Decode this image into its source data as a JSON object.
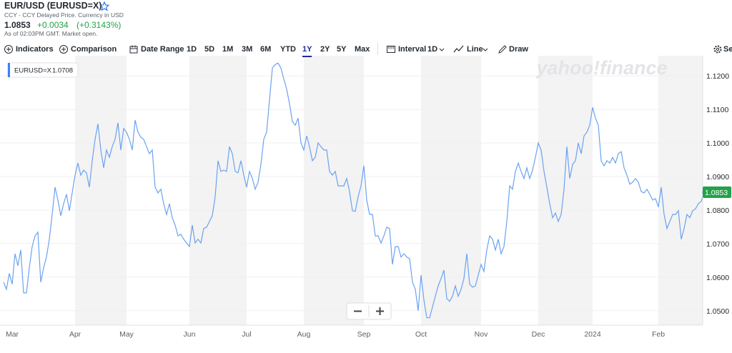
{
  "header": {
    "title": "EUR/USD (EURUSD=X)",
    "subtitle": "CCY - CCY Delayed Price. Currency in USD",
    "price": "1.0853",
    "change": "+0.0034",
    "change_percent": "(+0.3143%)",
    "timestamp": "As of 02:03PM GMT. Market open."
  },
  "toolbar": {
    "indicators": "Indicators",
    "comparison": "Comparison",
    "date_range": "Date Range",
    "ranges": [
      "1D",
      "5D",
      "1M",
      "3M",
      "6M",
      "YTD",
      "1Y",
      "2Y",
      "5Y",
      "Max"
    ],
    "active_range": "1Y",
    "interval": "Interval",
    "interval_value": "1D",
    "line": "Line",
    "draw": "Draw",
    "settings": "Se"
  },
  "watermark": "yahoo!finance",
  "chart_data": {
    "type": "line",
    "hover_label": "EURUSD=X",
    "hover_value": "1.0708",
    "series": [
      {
        "name": "EURUSD=X",
        "color": "#6ba2f1",
        "values": [
          1.0585,
          1.0564,
          1.0611,
          1.0579,
          1.067,
          1.0634,
          1.0681,
          1.0553,
          1.0553,
          1.0628,
          1.0691,
          1.0723,
          1.0734,
          1.0585,
          1.0628,
          1.066,
          1.0713,
          1.0787,
          1.0868,
          1.083,
          1.0783,
          1.0819,
          1.0847,
          1.0798,
          1.0851,
          1.0904,
          1.094,
          1.0904,
          1.0919,
          1.0911,
          1.0868,
          1.0947,
          1.1011,
          1.1057,
          1.0979,
          1.0926,
          1.0979,
          1.0957,
          1.0989,
          1.1011,
          1.106,
          1.0979,
          1.1043,
          1.1032,
          1.1011,
          1.0979,
          1.1068,
          1.1032,
          1.1017,
          1.1011,
          1.0989,
          1.0968,
          1.0979,
          1.0868,
          1.0851,
          1.0862,
          1.0819,
          1.0787,
          1.0819,
          1.0777,
          1.0755,
          1.0723,
          1.0728,
          1.0713,
          1.0702,
          1.0691,
          1.0755,
          1.0702,
          1.0713,
          1.0702,
          1.0745,
          1.0749,
          1.0766,
          1.0783,
          1.084,
          1.0947,
          1.0915,
          1.0919,
          1.0915,
          1.0989,
          1.0968,
          1.0915,
          1.0911,
          1.0947,
          1.0904,
          1.0868,
          1.0915,
          1.0894,
          1.0862,
          1.0883,
          1.0936,
          1.1011,
          1.1032,
          1.1128,
          1.1223,
          1.1234,
          1.1238,
          1.1223,
          1.1191,
          1.116,
          1.1117,
          1.1064,
          1.1053,
          1.1074,
          1.1,
          1.0979,
          1.1021,
          1.0989,
          1.0947,
          1.0957,
          1.1,
          1.0989,
          1.0979,
          1.0979,
          1.0915,
          1.0904,
          1.0915,
          1.0872,
          1.0872,
          1.0872,
          1.0894,
          1.0855,
          1.0798,
          1.0796,
          1.084,
          1.0872,
          1.0932,
          1.083,
          1.0787,
          1.0787,
          1.0723,
          1.0723,
          1.0702,
          1.0723,
          1.0749,
          1.0745,
          1.0638,
          1.0691,
          1.0691,
          1.066,
          1.067,
          1.066,
          1.0655,
          1.0585,
          1.0564,
          1.05,
          1.0606,
          1.0532,
          1.0479,
          1.0479,
          1.0511,
          1.0543,
          1.0574,
          1.0596,
          1.0621,
          1.0536,
          1.0528,
          1.0543,
          1.0574,
          1.0543,
          1.0564,
          1.0596,
          1.067,
          1.0579,
          1.057,
          1.0574,
          1.0606,
          1.0638,
          1.0617,
          1.0681,
          1.0723,
          1.0713,
          1.0681,
          1.0713,
          1.067,
          1.0691,
          1.0766,
          1.0872,
          1.0862,
          1.0915,
          1.094,
          1.0915,
          1.0894,
          1.0926,
          1.0894,
          1.0919,
          1.0957,
          1.1,
          1.0979,
          1.0915,
          1.0868,
          1.0819,
          1.0777,
          1.0791,
          1.0766,
          1.0787,
          1.0862,
          1.0989,
          1.0894,
          1.0936,
          1.0947,
          1.1,
          1.0968,
          1.1021,
          1.1032,
          1.1053,
          1.1106,
          1.1074,
          1.1053,
          1.0947,
          1.0932,
          1.0947,
          1.094,
          1.0957,
          1.094,
          1.0968,
          1.0974,
          1.0926,
          1.0904,
          1.0877,
          1.0883,
          1.0894,
          1.0883,
          1.0855,
          1.0851,
          1.0862,
          1.0847,
          1.083,
          1.0834,
          1.0809,
          1.0868,
          1.0787,
          1.0745,
          1.0766,
          1.0787,
          1.0787,
          1.0798,
          1.0713,
          1.0745,
          1.0787,
          1.0777,
          1.0798,
          1.0804,
          1.0819,
          1.0826,
          1.0853
        ]
      }
    ],
    "xlim": [
      0,
      244
    ],
    "xticks": [
      {
        "value": 3,
        "label": "Mar"
      },
      {
        "value": 25,
        "label": "Apr"
      },
      {
        "value": 43,
        "label": "May"
      },
      {
        "value": 65,
        "label": "Jun"
      },
      {
        "value": 85,
        "label": "Jul"
      },
      {
        "value": 105,
        "label": "Aug"
      },
      {
        "value": 126,
        "label": "Sep"
      },
      {
        "value": 146,
        "label": "Oct"
      },
      {
        "value": 167,
        "label": "Nov"
      },
      {
        "value": 187,
        "label": "Dec"
      },
      {
        "value": 206,
        "label": "2024"
      },
      {
        "value": 229,
        "label": "Feb"
      }
    ],
    "ylim": [
      1.0457,
      1.1245
    ],
    "yticks": [
      {
        "value": 1.05,
        "label": "1.0500"
      },
      {
        "value": 1.06,
        "label": "1.0600"
      },
      {
        "value": 1.07,
        "label": "1.0700"
      },
      {
        "value": 1.08,
        "label": "1.0800"
      },
      {
        "value": 1.09,
        "label": "1.0900"
      },
      {
        "value": 1.1,
        "label": "1.1000"
      },
      {
        "value": 1.11,
        "label": "1.1100"
      },
      {
        "value": 1.12,
        "label": "1.1200"
      }
    ],
    "grid": true,
    "last_color": "#21a348"
  }
}
